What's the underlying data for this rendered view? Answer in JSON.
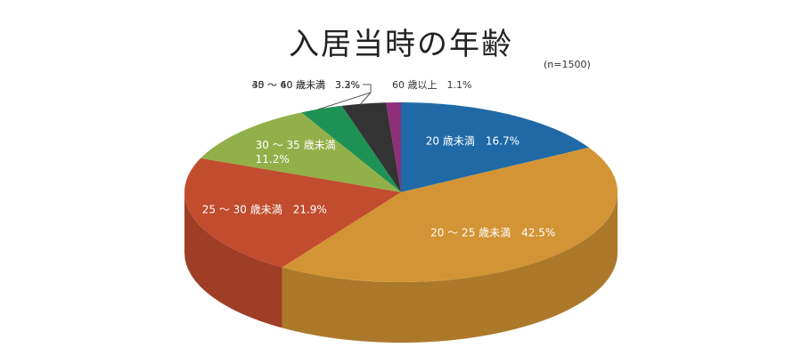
{
  "chart_data": {
    "type": "pie",
    "style": "3d",
    "title": "入居当時の年齢",
    "note": "(n=1500)",
    "unit": "%",
    "slices": [
      {
        "label": "20 歳未満",
        "value": 16.7,
        "value_text": "16.7%",
        "color": "#1f6aa6"
      },
      {
        "label": "20 ～ 25 歳未満",
        "value": 42.5,
        "value_text": "42.5%",
        "color": "#d29434"
      },
      {
        "label": "25 ～ 30 歳未満",
        "value": 21.9,
        "value_text": "21.9%",
        "color": "#c24c2e"
      },
      {
        "label": "30 ～ 35 歳未満",
        "value": 11.2,
        "value_text": "11.2%",
        "color": "#92b04a"
      },
      {
        "label": "35 ～ 40 歳未満",
        "value": 3.2,
        "value_text": "3.2%",
        "color": "#1e9155"
      },
      {
        "label": "40 ～ 60 歳未満",
        "value": 3.3,
        "value_text": "3.3%",
        "color": "#333333"
      },
      {
        "label": "60 歳以上",
        "value": 1.1,
        "value_text": "1.1%",
        "color": "#8d2f79"
      }
    ]
  }
}
